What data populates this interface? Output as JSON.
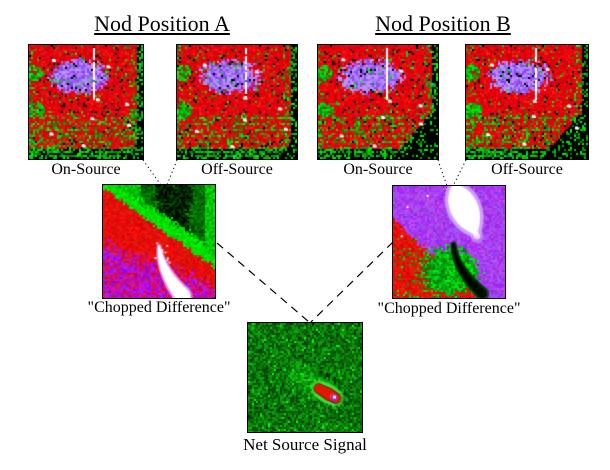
{
  "diagram": {
    "nod_a": {
      "title": "Nod Position A",
      "on_label": "On-Source",
      "off_label": "Off-Source",
      "chopped_label": "\"Chopped Difference\""
    },
    "nod_b": {
      "title": "Nod Position B",
      "on_label": "On-Source",
      "off_label": "Off-Source",
      "chopped_label": "\"Chopped Difference\""
    },
    "net_label": "Net Source Signal",
    "palette": {
      "background": "#ffffff",
      "text": "#000000",
      "connector_line": "#000000",
      "detector_red": "#e60000",
      "nebula_purple": "#8a50f0",
      "signal_green": "#00c000",
      "streak_white": "#ffffff"
    }
  }
}
